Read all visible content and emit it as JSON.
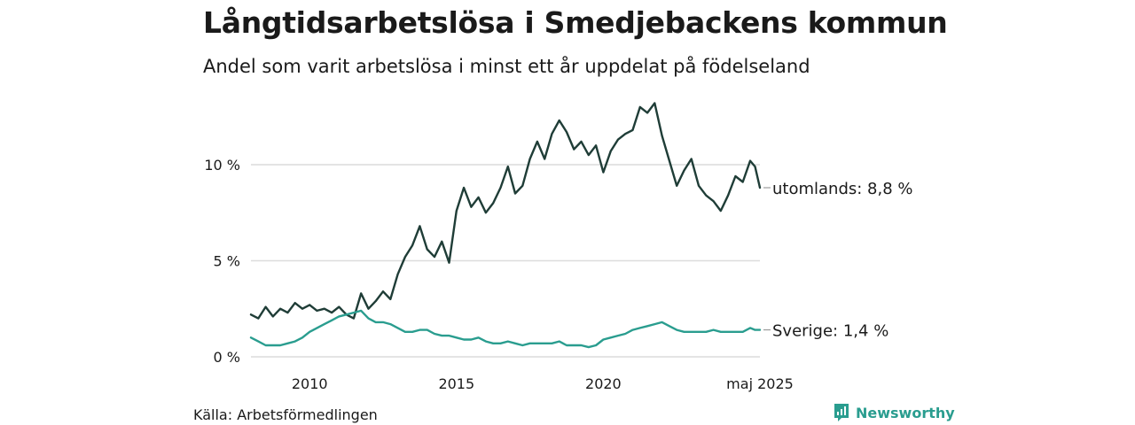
{
  "header": {
    "title": "Långtidsarbetslösa i Smedjebackens kommun",
    "subtitle": "Andel som varit arbetslösa i minst ett år uppdelat på födelseland"
  },
  "footer": {
    "source": "Källa: Arbetsförmedlingen",
    "brand": "Newsworthy",
    "brand_icon": "newsworthy-logo-icon",
    "brand_color": "#2a9d8f"
  },
  "chart_data": {
    "type": "line",
    "title": "Långtidsarbetslösa i Smedjebackens kommun",
    "subtitle": "Andel som varit arbetslösa i minst ett år uppdelat på födelseland",
    "xlabel": "",
    "ylabel": "",
    "x_range": [
      "2008-01",
      "2025-05"
    ],
    "ylim": [
      0,
      13.5
    ],
    "y_ticks": [
      0,
      5,
      10
    ],
    "y_tick_labels": [
      "0 %",
      "5 %",
      "10 %"
    ],
    "x_ticks": [
      "2010-01",
      "2015-01",
      "2020-01",
      "2025-05"
    ],
    "x_tick_labels": [
      "2010",
      "2015",
      "2020",
      "maj 2025"
    ],
    "grid": "horizontal",
    "legend": "end-labels",
    "series": [
      {
        "name": "utomlands",
        "end_label": "utomlands: 8,8 %",
        "color": "#1f3d37",
        "points": [
          [
            "2008-01",
            2.2
          ],
          [
            "2008-04",
            2.0
          ],
          [
            "2008-07",
            2.6
          ],
          [
            "2008-10",
            2.1
          ],
          [
            "2009-01",
            2.5
          ],
          [
            "2009-04",
            2.3
          ],
          [
            "2009-07",
            2.8
          ],
          [
            "2009-10",
            2.5
          ],
          [
            "2010-01",
            2.7
          ],
          [
            "2010-04",
            2.4
          ],
          [
            "2010-07",
            2.5
          ],
          [
            "2010-10",
            2.3
          ],
          [
            "2011-01",
            2.6
          ],
          [
            "2011-04",
            2.2
          ],
          [
            "2011-07",
            2.0
          ],
          [
            "2011-10",
            3.3
          ],
          [
            "2012-01",
            2.5
          ],
          [
            "2012-04",
            2.9
          ],
          [
            "2012-07",
            3.4
          ],
          [
            "2012-10",
            3.0
          ],
          [
            "2013-01",
            4.3
          ],
          [
            "2013-04",
            5.2
          ],
          [
            "2013-07",
            5.8
          ],
          [
            "2013-10",
            6.8
          ],
          [
            "2014-01",
            5.6
          ],
          [
            "2014-04",
            5.2
          ],
          [
            "2014-07",
            6.0
          ],
          [
            "2014-10",
            4.9
          ],
          [
            "2015-01",
            7.6
          ],
          [
            "2015-04",
            8.8
          ],
          [
            "2015-07",
            7.8
          ],
          [
            "2015-10",
            8.3
          ],
          [
            "2016-01",
            7.5
          ],
          [
            "2016-04",
            8.0
          ],
          [
            "2016-07",
            8.8
          ],
          [
            "2016-10",
            9.9
          ],
          [
            "2017-01",
            8.5
          ],
          [
            "2017-04",
            8.9
          ],
          [
            "2017-07",
            10.3
          ],
          [
            "2017-10",
            11.2
          ],
          [
            "2018-01",
            10.3
          ],
          [
            "2018-04",
            11.6
          ],
          [
            "2018-07",
            12.3
          ],
          [
            "2018-10",
            11.7
          ],
          [
            "2019-01",
            10.8
          ],
          [
            "2019-04",
            11.2
          ],
          [
            "2019-07",
            10.5
          ],
          [
            "2019-10",
            11.0
          ],
          [
            "2020-01",
            9.6
          ],
          [
            "2020-04",
            10.7
          ],
          [
            "2020-07",
            11.3
          ],
          [
            "2020-10",
            11.6
          ],
          [
            "2021-01",
            11.8
          ],
          [
            "2021-04",
            13.0
          ],
          [
            "2021-07",
            12.7
          ],
          [
            "2021-10",
            13.2
          ],
          [
            "2022-01",
            11.5
          ],
          [
            "2022-04",
            10.2
          ],
          [
            "2022-07",
            8.9
          ],
          [
            "2022-10",
            9.7
          ],
          [
            "2023-01",
            10.3
          ],
          [
            "2023-04",
            8.9
          ],
          [
            "2023-07",
            8.4
          ],
          [
            "2023-10",
            8.1
          ],
          [
            "2024-01",
            7.6
          ],
          [
            "2024-04",
            8.4
          ],
          [
            "2024-07",
            9.4
          ],
          [
            "2024-10",
            9.1
          ],
          [
            "2025-01",
            10.2
          ],
          [
            "2025-03",
            9.9
          ],
          [
            "2025-05",
            8.8
          ]
        ]
      },
      {
        "name": "Sverige",
        "end_label": "Sverige: 1,4 %",
        "color": "#2a9d8f",
        "points": [
          [
            "2008-01",
            1.0
          ],
          [
            "2008-04",
            0.8
          ],
          [
            "2008-07",
            0.6
          ],
          [
            "2008-10",
            0.6
          ],
          [
            "2009-01",
            0.6
          ],
          [
            "2009-04",
            0.7
          ],
          [
            "2009-07",
            0.8
          ],
          [
            "2009-10",
            1.0
          ],
          [
            "2010-01",
            1.3
          ],
          [
            "2010-04",
            1.5
          ],
          [
            "2010-07",
            1.7
          ],
          [
            "2010-10",
            1.9
          ],
          [
            "2011-01",
            2.1
          ],
          [
            "2011-04",
            2.2
          ],
          [
            "2011-07",
            2.3
          ],
          [
            "2011-10",
            2.4
          ],
          [
            "2012-01",
            2.0
          ],
          [
            "2012-04",
            1.8
          ],
          [
            "2012-07",
            1.8
          ],
          [
            "2012-10",
            1.7
          ],
          [
            "2013-01",
            1.5
          ],
          [
            "2013-04",
            1.3
          ],
          [
            "2013-07",
            1.3
          ],
          [
            "2013-10",
            1.4
          ],
          [
            "2014-01",
            1.4
          ],
          [
            "2014-04",
            1.2
          ],
          [
            "2014-07",
            1.1
          ],
          [
            "2014-10",
            1.1
          ],
          [
            "2015-01",
            1.0
          ],
          [
            "2015-04",
            0.9
          ],
          [
            "2015-07",
            0.9
          ],
          [
            "2015-10",
            1.0
          ],
          [
            "2016-01",
            0.8
          ],
          [
            "2016-04",
            0.7
          ],
          [
            "2016-07",
            0.7
          ],
          [
            "2016-10",
            0.8
          ],
          [
            "2017-01",
            0.7
          ],
          [
            "2017-04",
            0.6
          ],
          [
            "2017-07",
            0.7
          ],
          [
            "2017-10",
            0.7
          ],
          [
            "2018-01",
            0.7
          ],
          [
            "2018-04",
            0.7
          ],
          [
            "2018-07",
            0.8
          ],
          [
            "2018-10",
            0.6
          ],
          [
            "2019-01",
            0.6
          ],
          [
            "2019-04",
            0.6
          ],
          [
            "2019-07",
            0.5
          ],
          [
            "2019-10",
            0.6
          ],
          [
            "2020-01",
            0.9
          ],
          [
            "2020-04",
            1.0
          ],
          [
            "2020-07",
            1.1
          ],
          [
            "2020-10",
            1.2
          ],
          [
            "2021-01",
            1.4
          ],
          [
            "2021-04",
            1.5
          ],
          [
            "2021-07",
            1.6
          ],
          [
            "2021-10",
            1.7
          ],
          [
            "2022-01",
            1.8
          ],
          [
            "2022-04",
            1.6
          ],
          [
            "2022-07",
            1.4
          ],
          [
            "2022-10",
            1.3
          ],
          [
            "2023-01",
            1.3
          ],
          [
            "2023-04",
            1.3
          ],
          [
            "2023-07",
            1.3
          ],
          [
            "2023-10",
            1.4
          ],
          [
            "2024-01",
            1.3
          ],
          [
            "2024-04",
            1.3
          ],
          [
            "2024-07",
            1.3
          ],
          [
            "2024-10",
            1.3
          ],
          [
            "2025-01",
            1.5
          ],
          [
            "2025-03",
            1.4
          ],
          [
            "2025-05",
            1.4
          ]
        ]
      }
    ]
  }
}
